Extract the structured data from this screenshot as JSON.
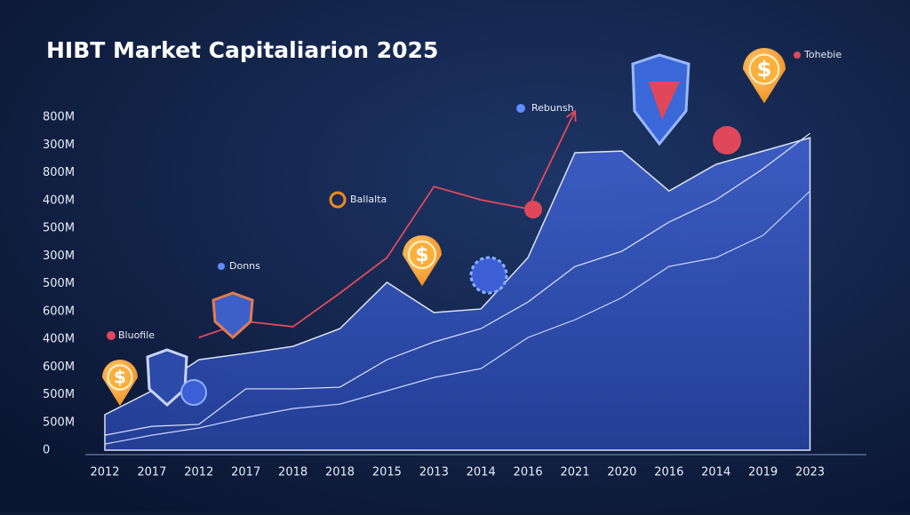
{
  "chart_data": {
    "type": "area",
    "title": "HIBT Market Capitaliarion 2025",
    "categories": [
      "2012",
      "2017",
      "2012",
      "2017",
      "2018",
      "2018",
      "2015",
      "2013",
      "2014",
      "2016",
      "2021",
      "2020",
      "2016",
      "2014",
      "2019",
      "2023"
    ],
    "ycategories": [
      "0",
      "500M",
      "500M",
      "600M",
      "400M",
      "600M",
      "500M",
      "300M",
      "500M",
      "400M",
      "800M",
      "300M",
      "800M"
    ],
    "series": [
      {
        "color": "#3f63c9",
        "values": [
          1.28,
          2.14,
          3.26,
          3.49,
          3.74,
          4.38,
          6.05,
          4.96,
          5.09,
          6.94,
          10.72,
          10.78,
          9.34,
          10.3,
          10.78,
          11.26
        ]
      },
      {
        "color": "#dfe6ff",
        "values": [
          0.54,
          0.86,
          0.93,
          2.21,
          2.21,
          2.27,
          3.26,
          3.9,
          4.38,
          5.34,
          6.62,
          7.17,
          8.22,
          9.02,
          10.14,
          11.42
        ]
      },
      {
        "color": "#c9d4ff",
        "values": [
          0.22,
          0.54,
          0.8,
          1.18,
          1.5,
          1.66,
          2.14,
          2.62,
          2.94,
          4.06,
          4.7,
          5.5,
          6.62,
          6.94,
          7.74,
          9.34
        ]
      },
      {
        "color": "#e04a5a",
        "values": [
          null,
          null,
          4.06,
          4.64,
          4.45,
          5.66,
          6.94,
          9.5,
          9.02,
          8.7,
          12.22,
          null,
          null,
          null,
          null,
          null
        ]
      }
    ],
    "annotations": [
      "Bluofile",
      "Donns",
      "Ballalta",
      "Rebunsh",
      "Tohebie"
    ],
    "coin_icons": [
      "$",
      "$",
      "$",
      "$"
    ]
  }
}
